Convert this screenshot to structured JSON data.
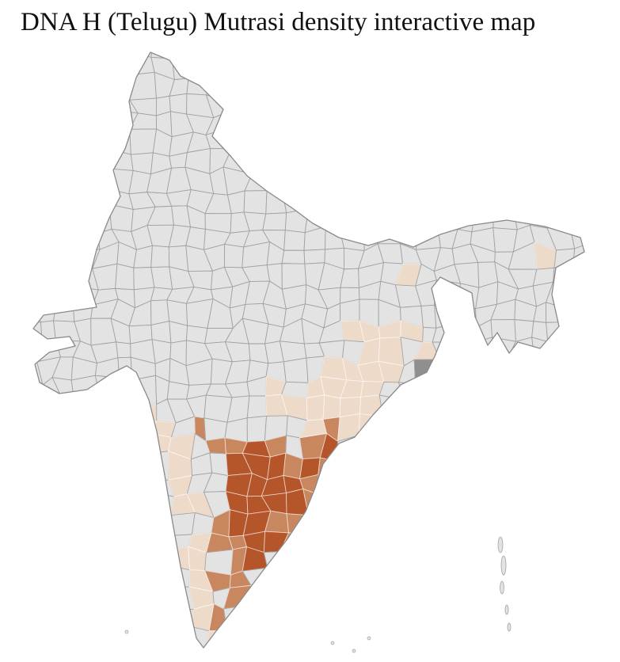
{
  "title": "DNA H (Telugu) Mutrasi density interactive map",
  "map": {
    "region": "India (district-level choropleth)",
    "background": "#ffffff",
    "base_fill": "#e3e3e4",
    "district_border_base": "#a2a2a2",
    "district_border_colored": "rgba(255,255,255,0.6)",
    "outline_color": "#8a8a8a",
    "levels": [
      {
        "name": "high",
        "color": "#b4552a"
      },
      {
        "name": "medium",
        "color": "#c9875f"
      },
      {
        "name": "low",
        "color": "#eedac9"
      },
      {
        "name": "urban",
        "color": "#8f8f8f"
      },
      {
        "name": "none",
        "color": "#e3e3e4"
      }
    ],
    "zones": {
      "urban": [
        [
          546,
          468,
          7
        ],
        [
          50,
          416,
          6
        ]
      ],
      "high": [
        [
          318,
          582,
          26
        ],
        [
          345,
          612,
          26
        ],
        [
          300,
          630,
          22
        ],
        [
          320,
          660,
          26
        ],
        [
          350,
          585,
          16
        ],
        [
          295,
          600,
          14
        ],
        [
          338,
          680,
          16
        ],
        [
          318,
          700,
          13
        ],
        [
          415,
          558,
          14
        ],
        [
          398,
          598,
          12
        ],
        [
          380,
          625,
          12
        ]
      ],
      "medium": [
        [
          320,
          590,
          42
        ],
        [
          340,
          640,
          44
        ],
        [
          305,
          670,
          38
        ],
        [
          370,
          600,
          30
        ],
        [
          400,
          580,
          24
        ],
        [
          418,
          560,
          20
        ],
        [
          390,
          635,
          22
        ],
        [
          360,
          670,
          22
        ],
        [
          286,
          560,
          16
        ],
        [
          258,
          548,
          14
        ],
        [
          234,
          528,
          11
        ],
        [
          300,
          722,
          20
        ],
        [
          330,
          705,
          14
        ],
        [
          272,
          772,
          16
        ],
        [
          300,
          758,
          13
        ],
        [
          282,
          738,
          12
        ]
      ],
      "low": [
        [
          205,
          555,
          30
        ],
        [
          182,
          520,
          22
        ],
        [
          228,
          598,
          26
        ],
        [
          248,
          640,
          22
        ],
        [
          262,
          680,
          18
        ],
        [
          240,
          700,
          16
        ],
        [
          250,
          745,
          22
        ],
        [
          270,
          795,
          16
        ],
        [
          248,
          775,
          14
        ],
        [
          320,
          745,
          14
        ],
        [
          455,
          490,
          34
        ],
        [
          482,
          452,
          30
        ],
        [
          505,
          422,
          24
        ],
        [
          462,
          535,
          22
        ],
        [
          436,
          428,
          16
        ],
        [
          428,
          386,
          12
        ],
        [
          463,
          410,
          14
        ],
        [
          522,
          346,
          11
        ],
        [
          540,
          440,
          14
        ],
        [
          270,
          312,
          9
        ],
        [
          332,
          352,
          9
        ],
        [
          300,
          338,
          8
        ],
        [
          680,
          320,
          11
        ],
        [
          358,
          520,
          14
        ],
        [
          385,
          540,
          12
        ],
        [
          380,
          520,
          20
        ],
        [
          412,
          528,
          16
        ],
        [
          350,
          500,
          12
        ],
        [
          150,
          478,
          10
        ],
        [
          408,
          498,
          16
        ],
        [
          428,
          470,
          12
        ]
      ]
    },
    "islands": {
      "andaman": [
        [
          632,
          688,
          3,
          10
        ],
        [
          636,
          714,
          3,
          12
        ],
        [
          634,
          742,
          2.4,
          8
        ],
        [
          640,
          770,
          2,
          6
        ],
        [
          643,
          792,
          2,
          5
        ]
      ],
      "minor": [
        [
          160,
          798,
          2
        ],
        [
          420,
          812,
          2
        ],
        [
          447,
          822,
          2
        ],
        [
          466,
          806,
          2
        ]
      ]
    }
  }
}
